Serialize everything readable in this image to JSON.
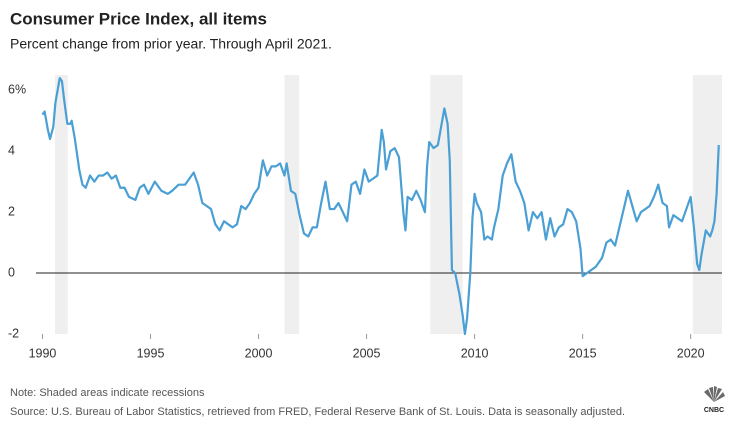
{
  "chart_data": {
    "type": "line",
    "title": "Consumer Price Index, all items",
    "subtitle": "Percent change from prior year. Through April 2021.",
    "note": "Note: Shaded areas indicate recessions",
    "source": "Source: U.S. Bureau of Labor Statistics, retrieved from FRED, Federal Reserve Bank of St. Louis. Data is seasonally adjusted.",
    "logo": "CNBC",
    "color": "#4a9fd4",
    "recessions": [
      [
        1990.58,
        1991.17
      ],
      [
        2001.2,
        2001.88
      ],
      [
        2007.95,
        2009.45
      ],
      [
        2020.1,
        2021.45
      ]
    ],
    "x": [
      1990.0,
      1990.1,
      1990.25,
      1990.35,
      1990.5,
      1990.6,
      1990.75,
      1990.8,
      1990.9,
      1991.0,
      1991.15,
      1991.3,
      1991.35,
      1991.5,
      1991.7,
      1991.85,
      1992.0,
      1992.2,
      1992.4,
      1992.6,
      1992.8,
      1993.0,
      1993.2,
      1993.4,
      1993.6,
      1993.8,
      1994.0,
      1994.3,
      1994.5,
      1994.7,
      1994.9,
      1995.2,
      1995.5,
      1995.8,
      1996.0,
      1996.3,
      1996.6,
      1996.8,
      1997.0,
      1997.2,
      1997.4,
      1997.6,
      1997.8,
      1998.0,
      1998.2,
      1998.4,
      1998.6,
      1998.8,
      1999.0,
      1999.2,
      1999.4,
      1999.6,
      1999.8,
      2000.0,
      2000.2,
      2000.4,
      2000.6,
      2000.8,
      2001.0,
      2001.2,
      2001.3,
      2001.5,
      2001.7,
      2001.9,
      2002.1,
      2002.3,
      2002.5,
      2002.7,
      2002.9,
      2003.1,
      2003.3,
      2003.5,
      2003.7,
      2003.9,
      2004.1,
      2004.3,
      2004.5,
      2004.7,
      2004.9,
      2005.1,
      2005.3,
      2005.5,
      2005.7,
      2005.8,
      2005.9,
      2006.1,
      2006.3,
      2006.5,
      2006.7,
      2006.8,
      2006.9,
      2007.1,
      2007.3,
      2007.5,
      2007.7,
      2007.8,
      2007.9,
      2008.1,
      2008.3,
      2008.5,
      2008.6,
      2008.75,
      2008.85,
      2008.95,
      2009.1,
      2009.3,
      2009.45,
      2009.55,
      2009.65,
      2009.8,
      2009.9,
      2010.0,
      2010.1,
      2010.3,
      2010.45,
      2010.6,
      2010.8,
      2010.9,
      2011.1,
      2011.3,
      2011.5,
      2011.7,
      2011.9,
      2012.1,
      2012.3,
      2012.5,
      2012.7,
      2012.9,
      2013.1,
      2013.3,
      2013.5,
      2013.7,
      2013.9,
      2014.1,
      2014.3,
      2014.5,
      2014.7,
      2014.9,
      2015.0,
      2015.2,
      2015.4,
      2015.6,
      2015.9,
      2016.1,
      2016.3,
      2016.5,
      2016.7,
      2016.9,
      2017.1,
      2017.3,
      2017.5,
      2017.7,
      2017.9,
      2018.1,
      2018.3,
      2018.5,
      2018.7,
      2018.9,
      2019.0,
      2019.2,
      2019.4,
      2019.6,
      2019.8,
      2020.0,
      2020.15,
      2020.3,
      2020.4,
      2020.5,
      2020.7,
      2020.9,
      2021.0,
      2021.1,
      2021.2,
      2021.3
    ],
    "values": [
      5.2,
      5.3,
      4.7,
      4.4,
      4.8,
      5.6,
      6.2,
      6.4,
      6.3,
      5.7,
      4.9,
      4.9,
      5.0,
      4.4,
      3.4,
      2.9,
      2.8,
      3.2,
      3.0,
      3.2,
      3.2,
      3.3,
      3.1,
      3.2,
      2.8,
      2.8,
      2.5,
      2.4,
      2.8,
      2.9,
      2.6,
      3.0,
      2.7,
      2.6,
      2.7,
      2.9,
      2.9,
      3.1,
      3.3,
      2.9,
      2.3,
      2.2,
      2.1,
      1.6,
      1.4,
      1.7,
      1.6,
      1.5,
      1.6,
      2.2,
      2.1,
      2.3,
      2.6,
      2.8,
      3.7,
      3.2,
      3.5,
      3.5,
      3.6,
      3.2,
      3.6,
      2.7,
      2.6,
      1.9,
      1.3,
      1.2,
      1.5,
      1.5,
      2.3,
      3.0,
      2.1,
      2.1,
      2.3,
      2.0,
      1.7,
      2.9,
      3.0,
      2.6,
      3.4,
      3.0,
      3.1,
      3.2,
      4.7,
      4.3,
      3.4,
      4.0,
      4.1,
      3.8,
      2.0,
      1.4,
      2.5,
      2.4,
      2.7,
      2.4,
      2.0,
      3.5,
      4.3,
      4.1,
      4.2,
      5.0,
      5.4,
      4.9,
      3.7,
      0.1,
      0.0,
      -0.7,
      -1.4,
      -2.0,
      -1.5,
      0.0,
      1.8,
      2.6,
      2.3,
      2.0,
      1.1,
      1.2,
      1.1,
      1.5,
      2.1,
      3.2,
      3.6,
      3.9,
      3.0,
      2.7,
      2.3,
      1.4,
      2.0,
      1.8,
      2.0,
      1.1,
      1.8,
      1.2,
      1.5,
      1.6,
      2.1,
      2.0,
      1.7,
      0.8,
      -0.1,
      0.0,
      0.1,
      0.2,
      0.5,
      1.0,
      1.1,
      0.9,
      1.5,
      2.1,
      2.7,
      2.2,
      1.7,
      2.0,
      2.1,
      2.2,
      2.5,
      2.9,
      2.3,
      2.2,
      1.5,
      1.9,
      1.8,
      1.7,
      2.1,
      2.5,
      1.5,
      0.3,
      0.1,
      0.6,
      1.4,
      1.2,
      1.4,
      1.7,
      2.6,
      4.2
    ],
    "xlim": [
      1989.7,
      2021.45
    ],
    "xticks": [
      1990,
      1995,
      2000,
      2005,
      2010,
      2015,
      2020
    ],
    "ylim": [
      -2,
      6.5
    ],
    "yticks": [
      {
        "value": 6,
        "label": "6%"
      },
      4,
      2,
      0,
      -2
    ]
  }
}
